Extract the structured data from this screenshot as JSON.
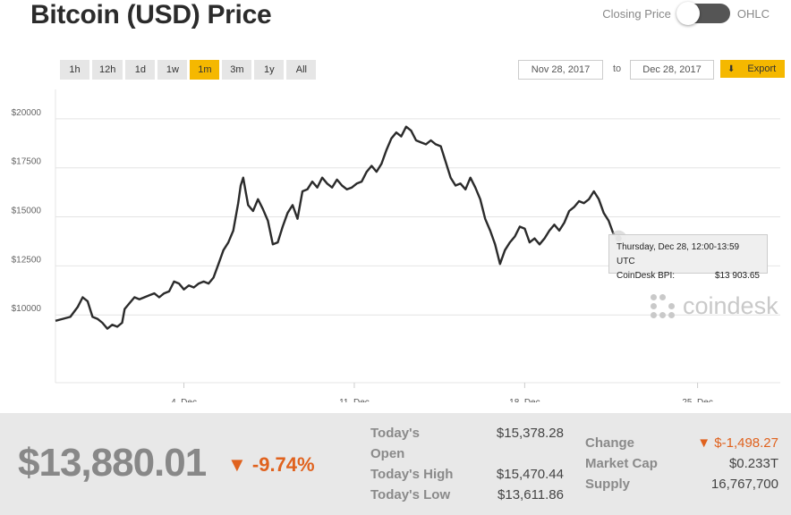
{
  "header": {
    "title": "Bitcoin (USD) Price",
    "toggle_left": "Closing Price",
    "toggle_right": "OHLC"
  },
  "ranges": [
    "1h",
    "12h",
    "1d",
    "1w",
    "1m",
    "3m",
    "1y",
    "All"
  ],
  "active_range": "1m",
  "date_from": "Nov 28, 2017",
  "date_to_label": "to",
  "date_to": "Dec 28, 2017",
  "export_label": "Export",
  "tooltip": {
    "line1": "Thursday, Dec 28, 12:00-13:59 UTC",
    "label": "CoinDesk BPI:",
    "value": "$13 903.65"
  },
  "watermark": "coindesk",
  "colors": {
    "accent": "#f5b800",
    "negative": "#e0621e",
    "line": "#2b2b2b"
  },
  "stats": {
    "price": "$13,880.01",
    "change_pct": "▼ -9.74%",
    "open_label_1": "Today's",
    "open_label_2": "Open",
    "open_value": "$15,378.28",
    "high_label": "Today's High",
    "high_value": "$15,470.44",
    "low_label": "Today's Low",
    "low_value": "$13,611.86",
    "change_label": "Change",
    "change_value": "▼ $-1,498.27",
    "mcap_label": "Market Cap",
    "mcap_value": "$0.233T",
    "supply_label": "Supply",
    "supply_value": "16,767,700"
  },
  "chart_data": {
    "type": "line",
    "title": "Bitcoin (USD) Price",
    "xlabel": "",
    "ylabel": "",
    "x_ticks": [
      "4. Dec",
      "11. Dec",
      "18. Dec",
      "25. Dec"
    ],
    "y_ticks": [
      "$10000",
      "$12500",
      "$15000",
      "$17500",
      "$20000"
    ],
    "ylim": [
      7000,
      21500
    ],
    "x_start": "Nov 28, 2017",
    "x_end": "Dec 28, 2017",
    "series": [
      {
        "values": [
          [
            0,
            9700
          ],
          [
            0.3,
            9800
          ],
          [
            0.6,
            9900
          ],
          [
            0.9,
            10400
          ],
          [
            1.1,
            10900
          ],
          [
            1.3,
            10700
          ],
          [
            1.5,
            9900
          ],
          [
            1.7,
            9800
          ],
          [
            1.9,
            9600
          ],
          [
            2.1,
            9300
          ],
          [
            2.3,
            9500
          ],
          [
            2.5,
            9400
          ],
          [
            2.7,
            9600
          ],
          [
            2.8,
            10300
          ],
          [
            3.0,
            10600
          ],
          [
            3.2,
            10900
          ],
          [
            3.4,
            10800
          ],
          [
            3.6,
            10900
          ],
          [
            3.8,
            11000
          ],
          [
            4.0,
            11100
          ],
          [
            4.2,
            10900
          ],
          [
            4.4,
            11100
          ],
          [
            4.6,
            11200
          ],
          [
            4.8,
            11700
          ],
          [
            5.0,
            11600
          ],
          [
            5.2,
            11300
          ],
          [
            5.4,
            11500
          ],
          [
            5.6,
            11400
          ],
          [
            5.8,
            11600
          ],
          [
            6.0,
            11700
          ],
          [
            6.2,
            11600
          ],
          [
            6.4,
            11900
          ],
          [
            6.6,
            12600
          ],
          [
            6.8,
            13300
          ],
          [
            7.0,
            13700
          ],
          [
            7.2,
            14300
          ],
          [
            7.4,
            15700
          ],
          [
            7.5,
            16600
          ],
          [
            7.6,
            17000
          ],
          [
            7.7,
            16300
          ],
          [
            7.8,
            15600
          ],
          [
            8.0,
            15300
          ],
          [
            8.2,
            15900
          ],
          [
            8.4,
            15400
          ],
          [
            8.6,
            14800
          ],
          [
            8.8,
            13600
          ],
          [
            9.0,
            13700
          ],
          [
            9.2,
            14500
          ],
          [
            9.4,
            15200
          ],
          [
            9.6,
            15600
          ],
          [
            9.8,
            14900
          ],
          [
            10.0,
            16300
          ],
          [
            10.2,
            16400
          ],
          [
            10.4,
            16800
          ],
          [
            10.6,
            16500
          ],
          [
            10.8,
            17000
          ],
          [
            11.0,
            16700
          ],
          [
            11.2,
            16500
          ],
          [
            11.4,
            16900
          ],
          [
            11.6,
            16600
          ],
          [
            11.8,
            16400
          ],
          [
            12.0,
            16500
          ],
          [
            12.2,
            16700
          ],
          [
            12.4,
            16800
          ],
          [
            12.6,
            17300
          ],
          [
            12.8,
            17600
          ],
          [
            13.0,
            17300
          ],
          [
            13.2,
            17700
          ],
          [
            13.4,
            18400
          ],
          [
            13.6,
            19000
          ],
          [
            13.8,
            19300
          ],
          [
            14.0,
            19100
          ],
          [
            14.2,
            19600
          ],
          [
            14.4,
            19400
          ],
          [
            14.6,
            18900
          ],
          [
            14.8,
            18800
          ],
          [
            15.0,
            18700
          ],
          [
            15.2,
            18900
          ],
          [
            15.4,
            18700
          ],
          [
            15.6,
            18600
          ],
          [
            15.8,
            17800
          ],
          [
            16.0,
            17000
          ],
          [
            16.2,
            16600
          ],
          [
            16.4,
            16700
          ],
          [
            16.6,
            16400
          ],
          [
            16.8,
            17000
          ],
          [
            17.0,
            16500
          ],
          [
            17.2,
            15900
          ],
          [
            17.4,
            14900
          ],
          [
            17.6,
            14300
          ],
          [
            17.8,
            13600
          ],
          [
            18.0,
            12600
          ],
          [
            18.2,
            13300
          ],
          [
            18.4,
            13700
          ],
          [
            18.6,
            14000
          ],
          [
            18.8,
            14500
          ],
          [
            19.0,
            14400
          ],
          [
            19.2,
            13700
          ],
          [
            19.4,
            13900
          ],
          [
            19.6,
            13600
          ],
          [
            19.8,
            13900
          ],
          [
            20.0,
            14300
          ],
          [
            20.2,
            14600
          ],
          [
            20.4,
            14300
          ],
          [
            20.6,
            14700
          ],
          [
            20.8,
            15300
          ],
          [
            21.0,
            15500
          ],
          [
            21.2,
            15800
          ],
          [
            21.4,
            15700
          ],
          [
            21.6,
            15900
          ],
          [
            21.8,
            16300
          ],
          [
            22.0,
            15900
          ],
          [
            22.2,
            15200
          ],
          [
            22.4,
            14800
          ],
          [
            22.6,
            14100
          ],
          [
            22.8,
            13900
          ]
        ]
      }
    ]
  }
}
